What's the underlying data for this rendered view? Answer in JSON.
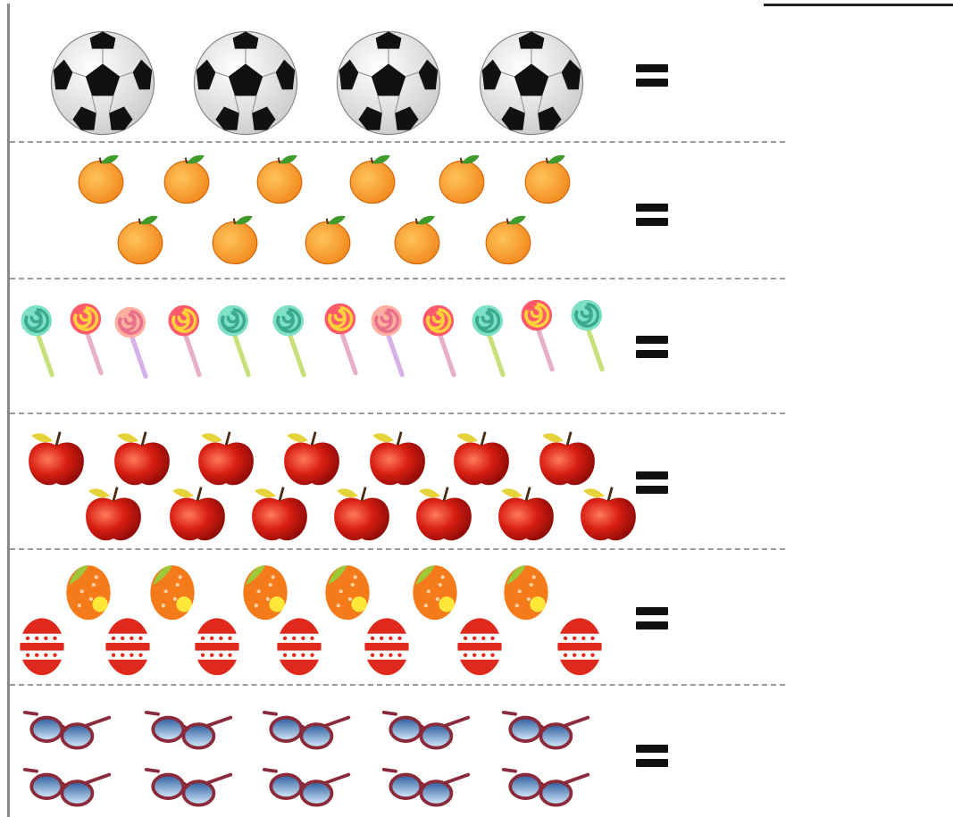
{
  "worksheet": {
    "rows": [
      {
        "name": "soccer-balls",
        "icon": "soccer-ball-icon",
        "count": 4,
        "equals_sign": "="
      },
      {
        "name": "oranges",
        "icon": "orange-icon",
        "count": 11,
        "equals_sign": "="
      },
      {
        "name": "lollipops",
        "icon": "lollipop-icon",
        "count": 12,
        "equals_sign": "="
      },
      {
        "name": "apples",
        "icon": "apple-icon",
        "count": 14,
        "equals_sign": "="
      },
      {
        "name": "easter-eggs",
        "icon": "easter-egg-icon",
        "count": 13,
        "equals_sign": "="
      },
      {
        "name": "sunglasses",
        "icon": "sunglasses-icon",
        "count": 10,
        "equals_sign": "="
      }
    ],
    "colors": {
      "orange": "#f28a1e",
      "leaf": "#3e9a2a",
      "apple_red": "#d81e12",
      "egg_orange": "#f47a1a",
      "egg_red": "#e0281c",
      "glasses_frame": "#8a2a3a",
      "glasses_lens": "#8ec6f0",
      "divider": "#9a9a9a"
    }
  }
}
